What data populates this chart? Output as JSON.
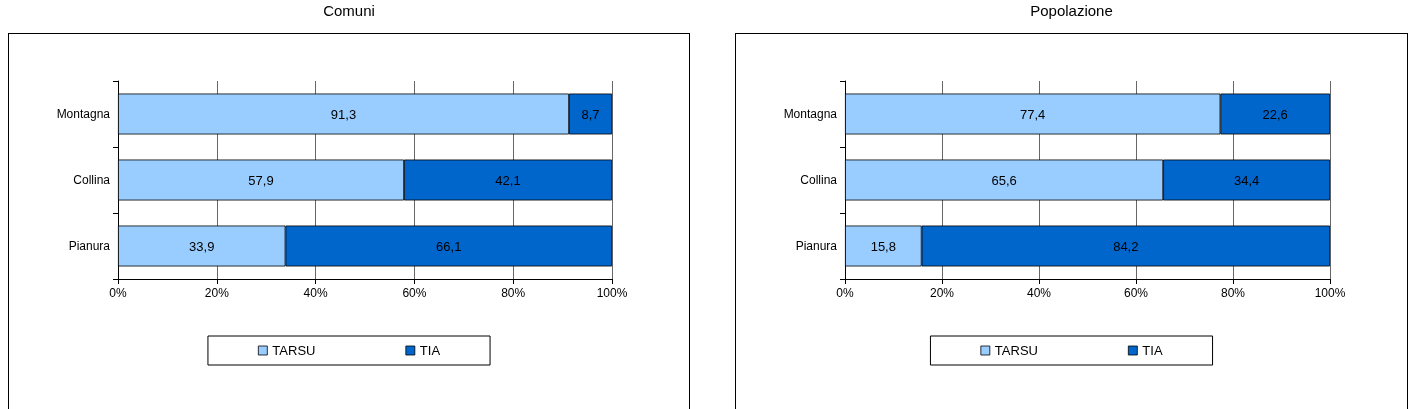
{
  "chart_data": [
    {
      "type": "bar",
      "title": "Comuni",
      "orientation": "horizontal",
      "stacked": true,
      "categories": [
        "Montagna",
        "Collina",
        "Pianura"
      ],
      "series": [
        {
          "name": "TARSU",
          "color": "#99ccff",
          "values": [
            91.3,
            57.9,
            33.9
          ],
          "value_labels": [
            "91,3",
            "57,9",
            "33,9"
          ]
        },
        {
          "name": "TIA",
          "color": "#0066cc",
          "values": [
            8.7,
            42.1,
            66.1
          ],
          "value_labels": [
            "8,7",
            "42,1",
            "66,1"
          ]
        }
      ],
      "xlim": [
        0,
        100
      ],
      "xticks": [
        {
          "value": 0,
          "label": "0%"
        },
        {
          "value": 20,
          "label": "20%"
        },
        {
          "value": 40,
          "label": "40%"
        },
        {
          "value": 60,
          "label": "60%"
        },
        {
          "value": 80,
          "label": "80%"
        },
        {
          "value": 100,
          "label": "100%"
        }
      ],
      "grid": "x",
      "legend": "bottom"
    },
    {
      "type": "bar",
      "title": "Popolazione",
      "orientation": "horizontal",
      "stacked": true,
      "categories": [
        "Montagna",
        "Collina",
        "Pianura"
      ],
      "series": [
        {
          "name": "TARSU",
          "color": "#99ccff",
          "values": [
            77.4,
            65.6,
            15.8
          ],
          "value_labels": [
            "77,4",
            "65,6",
            "15,8"
          ]
        },
        {
          "name": "TIA",
          "color": "#0066cc",
          "values": [
            22.6,
            34.4,
            84.2
          ],
          "value_labels": [
            "22,6",
            "34,4",
            "84,2"
          ]
        }
      ],
      "xlim": [
        0,
        100
      ],
      "xticks": [
        {
          "value": 0,
          "label": "0%"
        },
        {
          "value": 20,
          "label": "20%"
        },
        {
          "value": 40,
          "label": "40%"
        },
        {
          "value": 60,
          "label": "60%"
        },
        {
          "value": 80,
          "label": "80%"
        },
        {
          "value": 100,
          "label": "100%"
        }
      ],
      "grid": "x",
      "legend": "bottom"
    }
  ]
}
